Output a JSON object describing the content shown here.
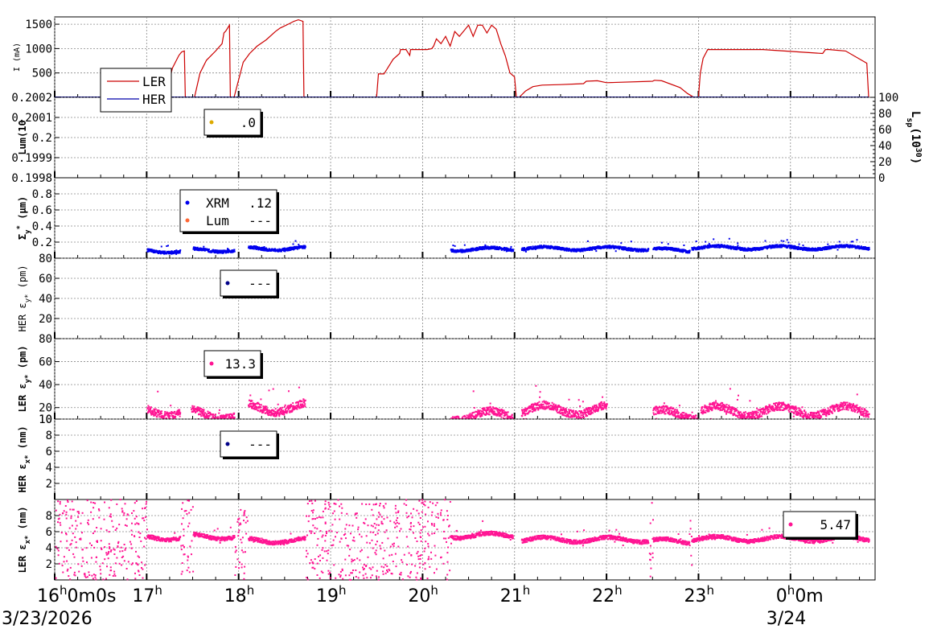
{
  "chart_data": {
    "type": "scatter",
    "x_range": [
      "2026-03-23 16:00",
      "2026-03-24 00:55"
    ],
    "x_ticks": [
      {
        "t": "16:00",
        "label_main": "16",
        "label_extra": "0m0s",
        "date": "3/23/2026"
      },
      {
        "t": "17:00",
        "label_main": "17"
      },
      {
        "t": "18:00",
        "label_main": "18"
      },
      {
        "t": "19:00",
        "label_main": "19"
      },
      {
        "t": "20:00",
        "label_main": "20"
      },
      {
        "t": "21:00",
        "label_main": "21"
      },
      {
        "t": "22:00",
        "label_main": "22"
      },
      {
        "t": "23:00",
        "label_main": "23"
      },
      {
        "t": "00:00",
        "label_main": "0",
        "label_extra": "0m",
        "date": "3/24"
      }
    ],
    "hour_suffix": "h",
    "grid": true,
    "panels": [
      {
        "id": "current",
        "ylabel": "I",
        "ylabel_unit": "(mA)",
        "ylim": [
          0,
          1650
        ],
        "yticks": [
          500,
          1000,
          1500
        ],
        "legend": {
          "placement": "bottom-left",
          "entries": [
            {
              "name": "LER",
              "color": "#cc0000"
            },
            {
              "name": "HER",
              "color": "#0000aa"
            }
          ]
        },
        "series": [
          {
            "name": "LER",
            "color": "#cc0000",
            "x_hours": [
              0.0,
              1.2,
              1.28,
              1.35,
              1.38,
              1.41,
              1.42,
              1.52,
              1.58,
              1.65,
              1.75,
              1.82,
              1.84,
              1.86,
              1.88,
              1.9,
              1.91,
              1.95,
              2.05,
              2.12,
              2.2,
              2.3,
              2.4,
              2.45,
              2.55,
              2.6,
              2.65,
              2.7,
              2.71,
              2.8,
              3.5,
              3.52,
              3.58,
              3.68,
              3.75,
              3.76,
              3.82,
              3.86,
              3.87,
              3.95,
              4.05,
              4.1,
              4.12,
              4.15,
              4.2,
              4.25,
              4.3,
              4.35,
              4.4,
              4.5,
              4.55,
              4.6,
              4.65,
              4.7,
              4.75,
              4.8,
              4.85,
              4.9,
              4.95,
              5.0,
              5.02,
              5.05,
              5.12,
              5.2,
              5.3,
              5.5,
              5.75,
              5.78,
              5.9,
              6.0,
              6.5,
              6.52,
              6.6,
              6.8,
              6.88,
              6.95,
              7.0,
              7.02,
              7.05,
              7.1,
              7.15,
              7.25,
              7.3,
              7.6,
              7.7,
              8.35,
              8.38,
              8.4,
              8.42,
              8.6,
              8.83,
              8.85
            ],
            "values": [
              0,
              0,
              600,
              860,
              930,
              950,
              0,
              0,
              500,
              760,
              950,
              1100,
              1320,
              1360,
              1420,
              1480,
              0,
              0,
              720,
              900,
              1050,
              1180,
              1350,
              1420,
              1510,
              1560,
              1590,
              1560,
              0,
              0,
              0,
              480,
              480,
              780,
              900,
              980,
              980,
              860,
              980,
              980,
              980,
              1000,
              1050,
              1200,
              1100,
              1250,
              1050,
              1350,
              1250,
              1480,
              1250,
              1480,
              1480,
              1320,
              1480,
              1400,
              1100,
              850,
              500,
              420,
              0,
              0,
              130,
              220,
              250,
              260,
              280,
              330,
              340,
              300,
              330,
              350,
              340,
              200,
              80,
              0,
              0,
              500,
              800,
              980,
              980,
              980,
              980,
              980,
              980,
              900,
              980,
              980,
              980,
              950,
              700,
              0
            ]
          },
          {
            "name": "HER",
            "color": "#0000aa",
            "x_hours": [
              0.0,
              8.85
            ],
            "values": [
              0,
              0
            ]
          }
        ]
      },
      {
        "id": "lum",
        "ylabel": "Lum(10",
        "ylim": [
          0.1998,
          0.2002
        ],
        "yticks": [
          0.1998,
          0.1999,
          0.2,
          0.2001,
          0.2002
        ],
        "ytick_labels": [
          "0.1998",
          "0.1999",
          "0.2",
          "0.2001",
          "0.2002"
        ],
        "y2label": "L",
        "y2label_sub": "sp",
        "y2label_rest": "(10",
        "y2label_exp": "30",
        "y2label_close": ")",
        "y2lim": [
          0,
          100
        ],
        "y2ticks": [
          0,
          20,
          40,
          60,
          80,
          100
        ],
        "legend": {
          "entries": [
            {
              "name": "",
              "value": ".0",
              "color": "#ddaa00"
            }
          ]
        },
        "series": []
      },
      {
        "id": "sigma",
        "ylabel": "Σ",
        "ylabel_sub": "y",
        "ylabel_sup": "*",
        "ylabel_unit": "(μm)",
        "ylim": [
          0,
          1.0
        ],
        "yticks": [
          0.2,
          0.4,
          0.6,
          0.8
        ],
        "legend": {
          "entries": [
            {
              "name": "XRM",
              "value": ".12",
              "color": "#0000ee"
            },
            {
              "name": "Lum",
              "value": "---",
              "color": "#ff6633"
            }
          ]
        },
        "series": [
          {
            "name": "XRM",
            "color": "#0000ee",
            "style": "dots",
            "segments": [
              [
                1.0,
                1.36
              ],
              [
                1.5,
                1.95
              ],
              [
                2.1,
                2.72
              ],
              [
                4.3,
                4.98
              ],
              [
                5.07,
                6.45
              ],
              [
                6.5,
                6.9
              ],
              [
                6.92,
                8.85
              ]
            ],
            "base": [
              0.09,
              0.1,
              0.12,
              0.11,
              0.12,
              0.1,
              0.13
            ],
            "jitter": 0.035
          }
        ]
      },
      {
        "id": "her_eps_y",
        "ylabel": "HER ε",
        "ylabel_sub": "y*",
        "ylabel_unit": "(pm)",
        "ylim": [
          0,
          80
        ],
        "yticks": [
          20,
          40,
          60,
          80
        ],
        "legend": {
          "entries": [
            {
              "name": "",
              "value": "---",
              "color": "#000088"
            }
          ]
        },
        "series": []
      },
      {
        "id": "ler_eps_y",
        "ylabel": "LER ε",
        "ylabel_sub": "y*",
        "ylabel_unit": "(pm)",
        "ylim": [
          10,
          80
        ],
        "yticks": [
          10,
          20,
          40,
          60,
          80
        ],
        "legend": {
          "entries": [
            {
              "name": "",
              "value": "13.3",
              "color": "#ff1493"
            }
          ]
        },
        "series": [
          {
            "name": "LER",
            "color": "#ff1493",
            "style": "dots",
            "segments": [
              [
                1.0,
                1.36
              ],
              [
                1.48,
                1.95
              ],
              [
                2.1,
                2.72
              ],
              [
                4.3,
                4.98
              ],
              [
                5.07,
                6.0
              ],
              [
                6.5,
                6.98
              ],
              [
                7.02,
                8.85
              ]
            ],
            "base": [
              17,
              14,
              20,
              13,
              18,
              14,
              17
            ],
            "jitter": 7
          }
        ]
      },
      {
        "id": "her_eps_x",
        "ylabel": "HER ε",
        "ylabel_sub": "x*",
        "ylabel_unit": "(nm)",
        "ylim": [
          0,
          10
        ],
        "yticks": [
          2,
          4,
          6,
          8,
          10
        ],
        "legend": {
          "entries": [
            {
              "name": "",
              "value": "---",
              "color": "#000088"
            }
          ]
        },
        "series": []
      },
      {
        "id": "ler_eps_x",
        "ylabel": "LER ε",
        "ylabel_sub": "x*",
        "ylabel_unit": "(nm)",
        "ylim": [
          0,
          10
        ],
        "yticks": [
          2,
          4,
          6,
          8
        ],
        "legend": {
          "placement": "right",
          "entries": [
            {
              "name": "",
              "value": "5.47",
              "color": "#ff1493"
            }
          ]
        },
        "series": [
          {
            "name": "LER",
            "color": "#ff1493",
            "style": "dots",
            "segments": [
              [
                1.0,
                1.36
              ],
              [
                1.5,
                1.95
              ],
              [
                2.1,
                2.72
              ],
              [
                4.3,
                4.98
              ],
              [
                5.07,
                6.45
              ],
              [
                6.5,
                6.9
              ],
              [
                6.92,
                8.85
              ]
            ],
            "base": [
              5.3,
              5.4,
              4.9,
              5.5,
              5.0,
              4.8,
              5.1
            ],
            "jitter": 0.5,
            "noise_segments": [
              [
                0.0,
                1.0
              ],
              [
                1.36,
                1.5
              ],
              [
                1.95,
                2.1
              ],
              [
                2.72,
                4.3
              ],
              [
                6.45,
                6.5
              ],
              [
                6.9,
                6.92
              ]
            ]
          }
        ]
      }
    ]
  }
}
